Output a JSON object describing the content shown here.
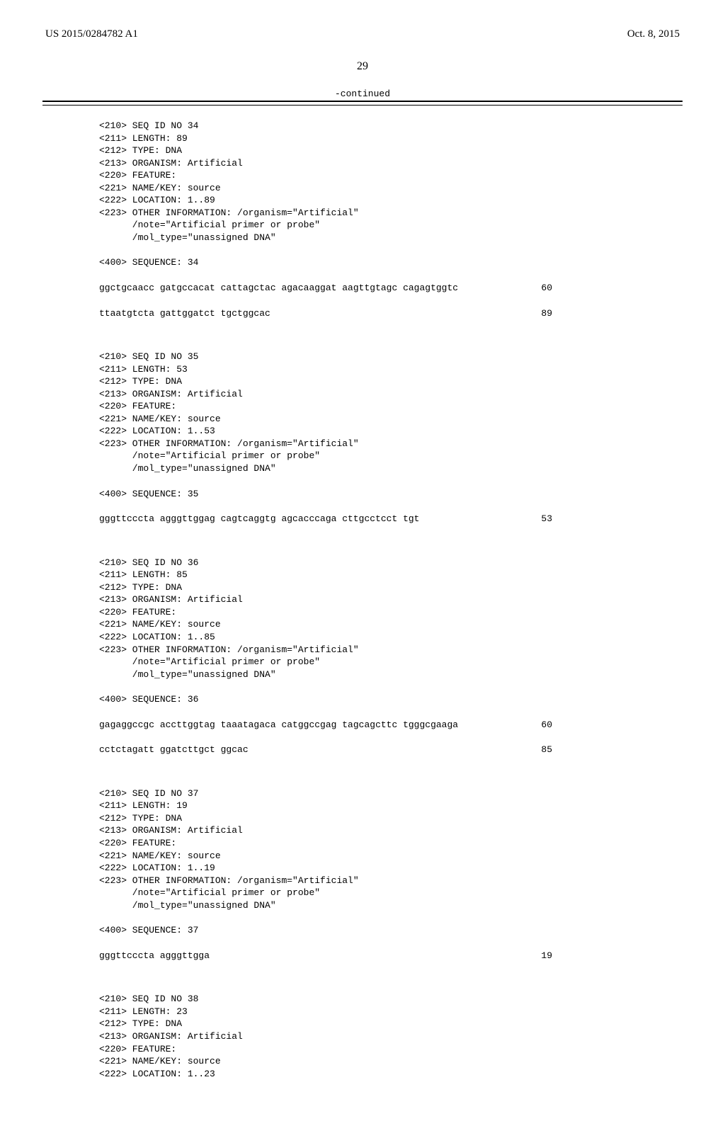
{
  "header": {
    "left": "US 2015/0284782 A1",
    "right": "Oct. 8, 2015"
  },
  "page_number": "29",
  "continued": "-continued",
  "entries": [
    {
      "meta": [
        "<210> SEQ ID NO 34",
        "<211> LENGTH: 89",
        "<212> TYPE: DNA",
        "<213> ORGANISM: Artificial",
        "<220> FEATURE:",
        "<221> NAME/KEY: source",
        "<222> LOCATION: 1..89",
        "<223> OTHER INFORMATION: /organism=\"Artificial\"",
        "      /note=\"Artificial primer or probe\"",
        "      /mol_type=\"unassigned DNA\""
      ],
      "seq_label": "<400> SEQUENCE: 34",
      "seq_rows": [
        {
          "seq": "ggctgcaacc gatgccacat cattagctac agacaaggat aagttgtagc cagagtggtc",
          "num": "60"
        },
        {
          "seq": "ttaatgtcta gattggatct tgctggcac",
          "num": "89"
        }
      ]
    },
    {
      "meta": [
        "<210> SEQ ID NO 35",
        "<211> LENGTH: 53",
        "<212> TYPE: DNA",
        "<213> ORGANISM: Artificial",
        "<220> FEATURE:",
        "<221> NAME/KEY: source",
        "<222> LOCATION: 1..53",
        "<223> OTHER INFORMATION: /organism=\"Artificial\"",
        "      /note=\"Artificial primer or probe\"",
        "      /mol_type=\"unassigned DNA\""
      ],
      "seq_label": "<400> SEQUENCE: 35",
      "seq_rows": [
        {
          "seq": "gggttcccta agggttggag cagtcaggtg agcacccaga cttgcctcct tgt",
          "num": "53"
        }
      ]
    },
    {
      "meta": [
        "<210> SEQ ID NO 36",
        "<211> LENGTH: 85",
        "<212> TYPE: DNA",
        "<213> ORGANISM: Artificial",
        "<220> FEATURE:",
        "<221> NAME/KEY: source",
        "<222> LOCATION: 1..85",
        "<223> OTHER INFORMATION: /organism=\"Artificial\"",
        "      /note=\"Artificial primer or probe\"",
        "      /mol_type=\"unassigned DNA\""
      ],
      "seq_label": "<400> SEQUENCE: 36",
      "seq_rows": [
        {
          "seq": "gagaggccgc accttggtag taaatagaca catggccgag tagcagcttc tgggcgaaga",
          "num": "60"
        },
        {
          "seq": "cctctagatt ggatcttgct ggcac",
          "num": "85"
        }
      ]
    },
    {
      "meta": [
        "<210> SEQ ID NO 37",
        "<211> LENGTH: 19",
        "<212> TYPE: DNA",
        "<213> ORGANISM: Artificial",
        "<220> FEATURE:",
        "<221> NAME/KEY: source",
        "<222> LOCATION: 1..19",
        "<223> OTHER INFORMATION: /organism=\"Artificial\"",
        "      /note=\"Artificial primer or probe\"",
        "      /mol_type=\"unassigned DNA\""
      ],
      "seq_label": "<400> SEQUENCE: 37",
      "seq_rows": [
        {
          "seq": "gggttcccta agggttgga",
          "num": "19"
        }
      ]
    },
    {
      "meta": [
        "<210> SEQ ID NO 38",
        "<211> LENGTH: 23",
        "<212> TYPE: DNA",
        "<213> ORGANISM: Artificial",
        "<220> FEATURE:",
        "<221> NAME/KEY: source",
        "<222> LOCATION: 1..23"
      ],
      "seq_label": "",
      "seq_rows": []
    }
  ]
}
